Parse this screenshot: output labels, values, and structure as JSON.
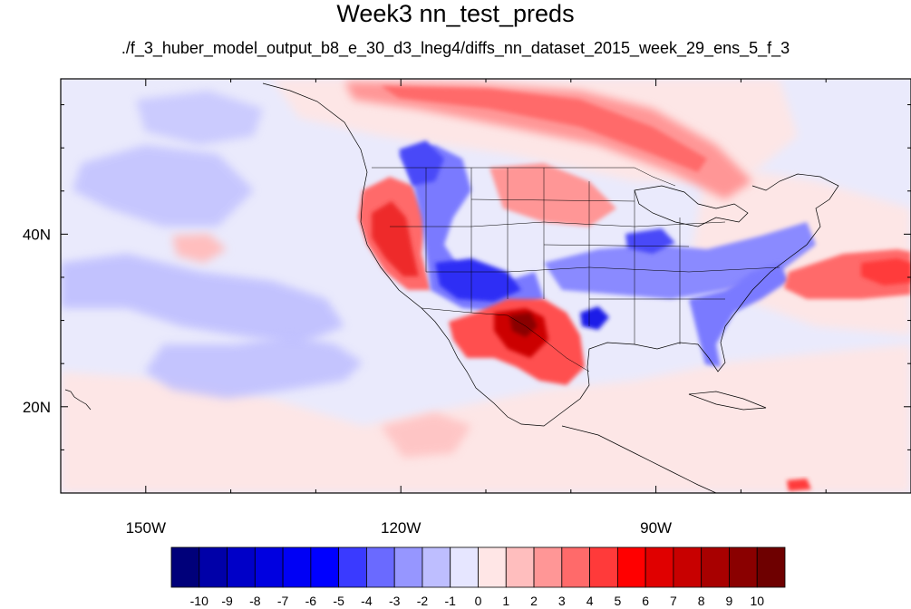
{
  "title": "Week3 nn_test_preds",
  "subtitle": "./f_3_huber_model_output_b8_e_30_d3_lneg4/diffs_nn_dataset_2015_week_29_ens_5_f_3",
  "map": {
    "projection": "lat-lon",
    "lon_range": [
      -160,
      -60
    ],
    "lat_range": [
      10,
      58
    ],
    "x_ticks": [
      "150W",
      "120W",
      "90W"
    ],
    "y_ticks": [
      "40N",
      "20N"
    ],
    "features": [
      "coastlines",
      "us-state-borders",
      "country-borders"
    ]
  },
  "colorbar": {
    "labels": [
      "-10",
      "-9",
      "-8",
      "-7",
      "-6",
      "-5",
      "-4",
      "-3",
      "-2",
      "-1",
      "0",
      "1",
      "2",
      "3",
      "4",
      "5",
      "6",
      "7",
      "8",
      "9",
      "10"
    ],
    "colors": [
      "#00007a",
      "#0000a8",
      "#0000c8",
      "#0000e0",
      "#0000f5",
      "#0000ff",
      "#3a3aff",
      "#6a6aff",
      "#9696ff",
      "#bebeff",
      "#e6e6ff",
      "#ffe6e6",
      "#ffbebe",
      "#ff9696",
      "#ff6a6a",
      "#ff3a3a",
      "#ff0000",
      "#e00000",
      "#c80000",
      "#a80000",
      "#8a0000",
      "#6e0000"
    ]
  }
}
